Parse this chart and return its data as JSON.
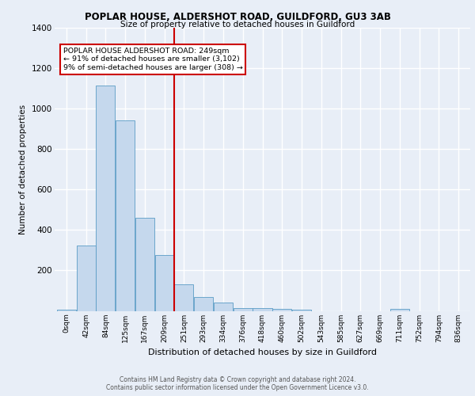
{
  "title1": "POPLAR HOUSE, ALDERSHOT ROAD, GUILDFORD, GU3 3AB",
  "title2": "Size of property relative to detached houses in Guildford",
  "xlabel": "Distribution of detached houses by size in Guildford",
  "ylabel": "Number of detached properties",
  "footer1": "Contains HM Land Registry data © Crown copyright and database right 2024.",
  "footer2": "Contains public sector information licensed under the Open Government Licence v3.0.",
  "bin_labels": [
    "0sqm",
    "42sqm",
    "84sqm",
    "125sqm",
    "167sqm",
    "209sqm",
    "251sqm",
    "293sqm",
    "334sqm",
    "376sqm",
    "418sqm",
    "460sqm",
    "502sqm",
    "543sqm",
    "585sqm",
    "627sqm",
    "669sqm",
    "711sqm",
    "752sqm",
    "794sqm",
    "836sqm"
  ],
  "bar_values": [
    5,
    325,
    1115,
    940,
    460,
    275,
    130,
    70,
    40,
    15,
    15,
    10,
    5,
    0,
    0,
    0,
    0,
    10,
    0,
    0,
    0
  ],
  "bar_color": "#c5d8ed",
  "bar_edge_color": "#5a9cc5",
  "highlight_bin_index": 6,
  "vline_color": "#cc0000",
  "annotation_line1": "POPLAR HOUSE ALDERSHOT ROAD: 249sqm",
  "annotation_line2": "← 91% of detached houses are smaller (3,102)",
  "annotation_line3": "9% of semi-detached houses are larger (308) →",
  "annotation_box_color": "#ffffff",
  "annotation_box_edge": "#cc0000",
  "ylim": [
    0,
    1400
  ],
  "yticks": [
    0,
    200,
    400,
    600,
    800,
    1000,
    1200,
    1400
  ],
  "background_color": "#e8eef7"
}
